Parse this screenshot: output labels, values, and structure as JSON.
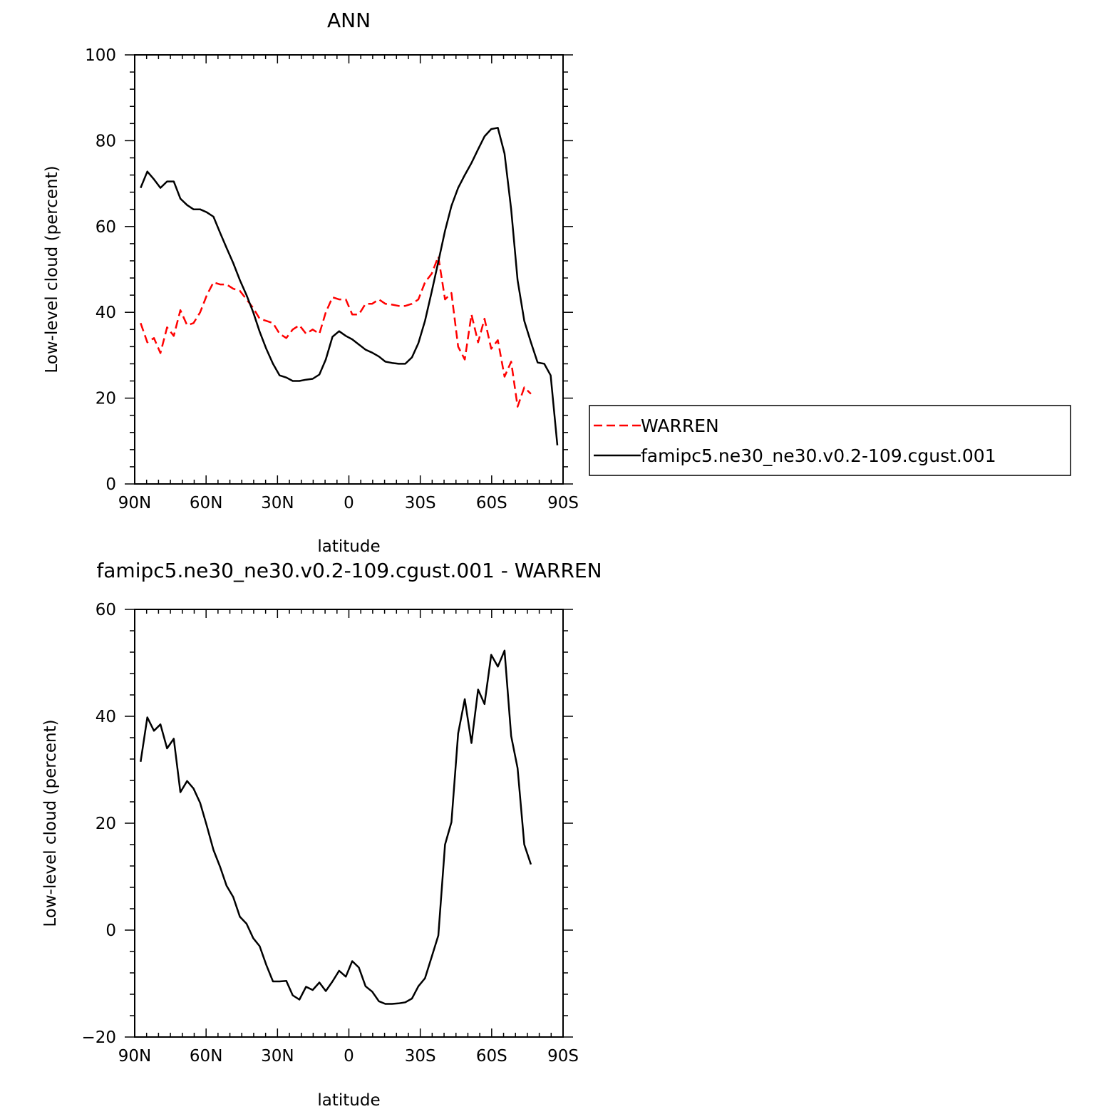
{
  "chart_data": [
    {
      "type": "line",
      "title": "ANN",
      "xlabel": "latitude",
      "ylabel": "Low-level cloud (percent)",
      "xlim": [
        90,
        -90
      ],
      "ylim": [
        0,
        100
      ],
      "xticks": [
        90,
        60,
        30,
        0,
        -30,
        -60,
        -90
      ],
      "xtick_labels": [
        "90N",
        "60N",
        "30N",
        "0",
        "30S",
        "60S",
        "90S"
      ],
      "yticks": [
        0,
        20,
        40,
        60,
        80,
        100
      ],
      "ytick_labels": [
        "0",
        "20",
        "40",
        "60",
        "80",
        "100"
      ],
      "legend": {
        "placement": "right",
        "entries": [
          "WARREN",
          "famipc5.ne30_ne30.v0.2-109.cgust.001"
        ]
      },
      "series": [
        {
          "name": "WARREN",
          "color": "#ff0000",
          "style": "dashed",
          "x": [
            87.5,
            84.7,
            81.9,
            79.2,
            76.4,
            73.6,
            70.8,
            68.0,
            65.3,
            62.5,
            59.7,
            56.9,
            54.1,
            51.4,
            48.6,
            45.8,
            43.0,
            40.2,
            37.5,
            34.7,
            31.9,
            29.1,
            26.3,
            23.6,
            20.8,
            18.0,
            15.2,
            12.4,
            9.7,
            6.9,
            4.1,
            1.3,
            -1.4,
            -4.2,
            -7.0,
            -9.8,
            -12.6,
            -15.3,
            -18.1,
            -20.9,
            -23.7,
            -26.5,
            -29.2,
            -32.0,
            -34.8,
            -37.6,
            -40.4,
            -43.1,
            -45.9,
            -48.7,
            -51.5,
            -54.3,
            -57.0,
            -59.8,
            -62.6,
            -65.4,
            -68.2,
            -70.9,
            -73.7,
            -76.5
          ],
          "y": [
            37.5,
            33.0,
            34.0,
            30.5,
            36.5,
            34.5,
            40.5,
            37.0,
            37.5,
            40.0,
            44.0,
            47.0,
            46.5,
            46.5,
            45.5,
            45.0,
            43.0,
            41.0,
            38.5,
            38.0,
            37.5,
            35.0,
            34.0,
            36.0,
            37.0,
            35.0,
            36.0,
            35.0,
            40.0,
            43.5,
            43.0,
            43.0,
            39.5,
            39.5,
            42.0,
            42.0,
            43.0,
            42.0,
            41.8,
            41.5,
            41.5,
            42.0,
            43.0,
            47.0,
            49.0,
            53.0,
            43.0,
            44.5,
            32.0,
            29.0,
            39.5,
            33.0,
            38.5,
            31.5,
            33.5,
            25.0,
            28.5,
            18.0,
            22.5,
            21.0
          ]
        },
        {
          "name": "famipc5.ne30_ne30.v0.2-109.cgust.001",
          "color": "#000000",
          "style": "solid",
          "x": [
            87.5,
            84.7,
            81.9,
            79.2,
            76.4,
            73.6,
            70.8,
            68.0,
            65.3,
            62.5,
            59.7,
            56.9,
            54.1,
            51.4,
            48.6,
            45.8,
            43.0,
            40.2,
            37.5,
            34.7,
            31.9,
            29.1,
            26.3,
            23.6,
            20.8,
            18.0,
            15.2,
            12.4,
            9.7,
            6.9,
            4.1,
            1.3,
            -1.4,
            -4.2,
            -7.0,
            -9.8,
            -12.6,
            -15.3,
            -18.1,
            -20.9,
            -23.7,
            -26.5,
            -29.2,
            -32.0,
            -34.8,
            -37.6,
            -40.4,
            -43.1,
            -45.9,
            -48.7,
            -51.5,
            -54.3,
            -57.0,
            -59.8,
            -62.6,
            -65.4,
            -68.2,
            -70.9,
            -73.7,
            -76.5,
            -79.3,
            -82.1,
            -84.8,
            -87.6
          ],
          "y": [
            69.0,
            72.8,
            71.0,
            69.0,
            70.5,
            70.5,
            66.5,
            65.0,
            64.0,
            64.0,
            63.3,
            62.3,
            58.5,
            55.0,
            51.5,
            47.5,
            44.0,
            40.0,
            35.5,
            31.5,
            28.0,
            25.3,
            24.8,
            24.0,
            24.0,
            24.3,
            24.5,
            25.5,
            29.0,
            34.3,
            35.6,
            34.5,
            33.7,
            32.5,
            31.3,
            30.6,
            29.7,
            28.5,
            28.2,
            28.0,
            28.0,
            29.5,
            32.8,
            38.0,
            44.8,
            51.8,
            59.0,
            64.8,
            69.0,
            72.0,
            74.8,
            78.0,
            81.0,
            82.7,
            83.0,
            77.0,
            64.0,
            47.5,
            38.0,
            33.0,
            28.3,
            28.0,
            25.3,
            9.0
          ]
        }
      ]
    },
    {
      "type": "line",
      "title": "famipc5.ne30_ne30.v0.2-109.cgust.001 - WARREN",
      "xlabel": "latitude",
      "ylabel": "Low-level cloud (percent)",
      "xlim": [
        90,
        -90
      ],
      "ylim": [
        -20,
        60
      ],
      "xticks": [
        90,
        60,
        30,
        0,
        -30,
        -60,
        -90
      ],
      "xtick_labels": [
        "90N",
        "60N",
        "30N",
        "0",
        "30S",
        "60S",
        "90S"
      ],
      "yticks": [
        -20,
        0,
        20,
        40,
        60
      ],
      "ytick_labels": [
        "−20",
        "0",
        "20",
        "40",
        "60"
      ],
      "series": [
        {
          "name": "famipc5.ne30_ne30.v0.2-109.cgust.001 - WARREN",
          "color": "#000000",
          "style": "solid",
          "x": [
            87.5,
            84.7,
            81.9,
            79.2,
            76.4,
            73.6,
            70.8,
            68.0,
            65.3,
            62.5,
            59.7,
            56.9,
            54.1,
            51.4,
            48.6,
            45.8,
            43.0,
            40.2,
            37.5,
            34.7,
            31.9,
            29.1,
            26.3,
            23.6,
            20.8,
            18.0,
            15.2,
            12.4,
            9.7,
            6.9,
            4.1,
            1.3,
            -1.4,
            -4.2,
            -7.0,
            -9.8,
            -12.6,
            -15.3,
            -18.1,
            -20.9,
            -23.7,
            -26.5,
            -29.2,
            -32.0,
            -34.8,
            -37.6,
            -40.4,
            -43.1,
            -45.9,
            -48.7,
            -51.5,
            -54.3,
            -57.0,
            -59.8,
            -62.6,
            -65.4,
            -68.2,
            -70.9,
            -73.7,
            -76.5
          ],
          "y": [
            31.5,
            39.8,
            37.3,
            38.5,
            34.0,
            35.8,
            25.8,
            27.9,
            26.5,
            23.8,
            19.5,
            15.0,
            11.8,
            8.3,
            6.2,
            2.5,
            1.2,
            -1.5,
            -3.0,
            -6.5,
            -9.6,
            -9.6,
            -9.5,
            -12.2,
            -13.0,
            -10.6,
            -11.2,
            -9.8,
            -11.4,
            -9.6,
            -7.6,
            -8.7,
            -5.8,
            -7.0,
            -10.5,
            -11.5,
            -13.3,
            -13.8,
            -13.8,
            -13.7,
            -13.5,
            -12.8,
            -10.5,
            -9.0,
            -5.0,
            -1.0,
            16.0,
            20.2,
            36.8,
            43.2,
            35.0,
            45.0,
            42.3,
            51.5,
            49.3,
            52.3,
            36.3,
            30.3,
            16.0,
            12.3
          ]
        }
      ]
    }
  ]
}
